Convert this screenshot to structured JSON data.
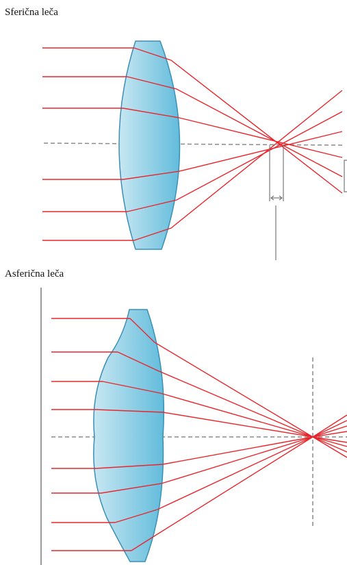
{
  "labels": {
    "spherical": "Sferična leča",
    "aspherical": "Asferična leča"
  },
  "colors": {
    "ray": "#e8262b",
    "lens_fill_light": "#bfe2ef",
    "lens_fill_dark": "#6cc2df",
    "lens_edge": "#3a8fb5",
    "axis": "#8a8a8a",
    "marker": "#777777"
  }
}
